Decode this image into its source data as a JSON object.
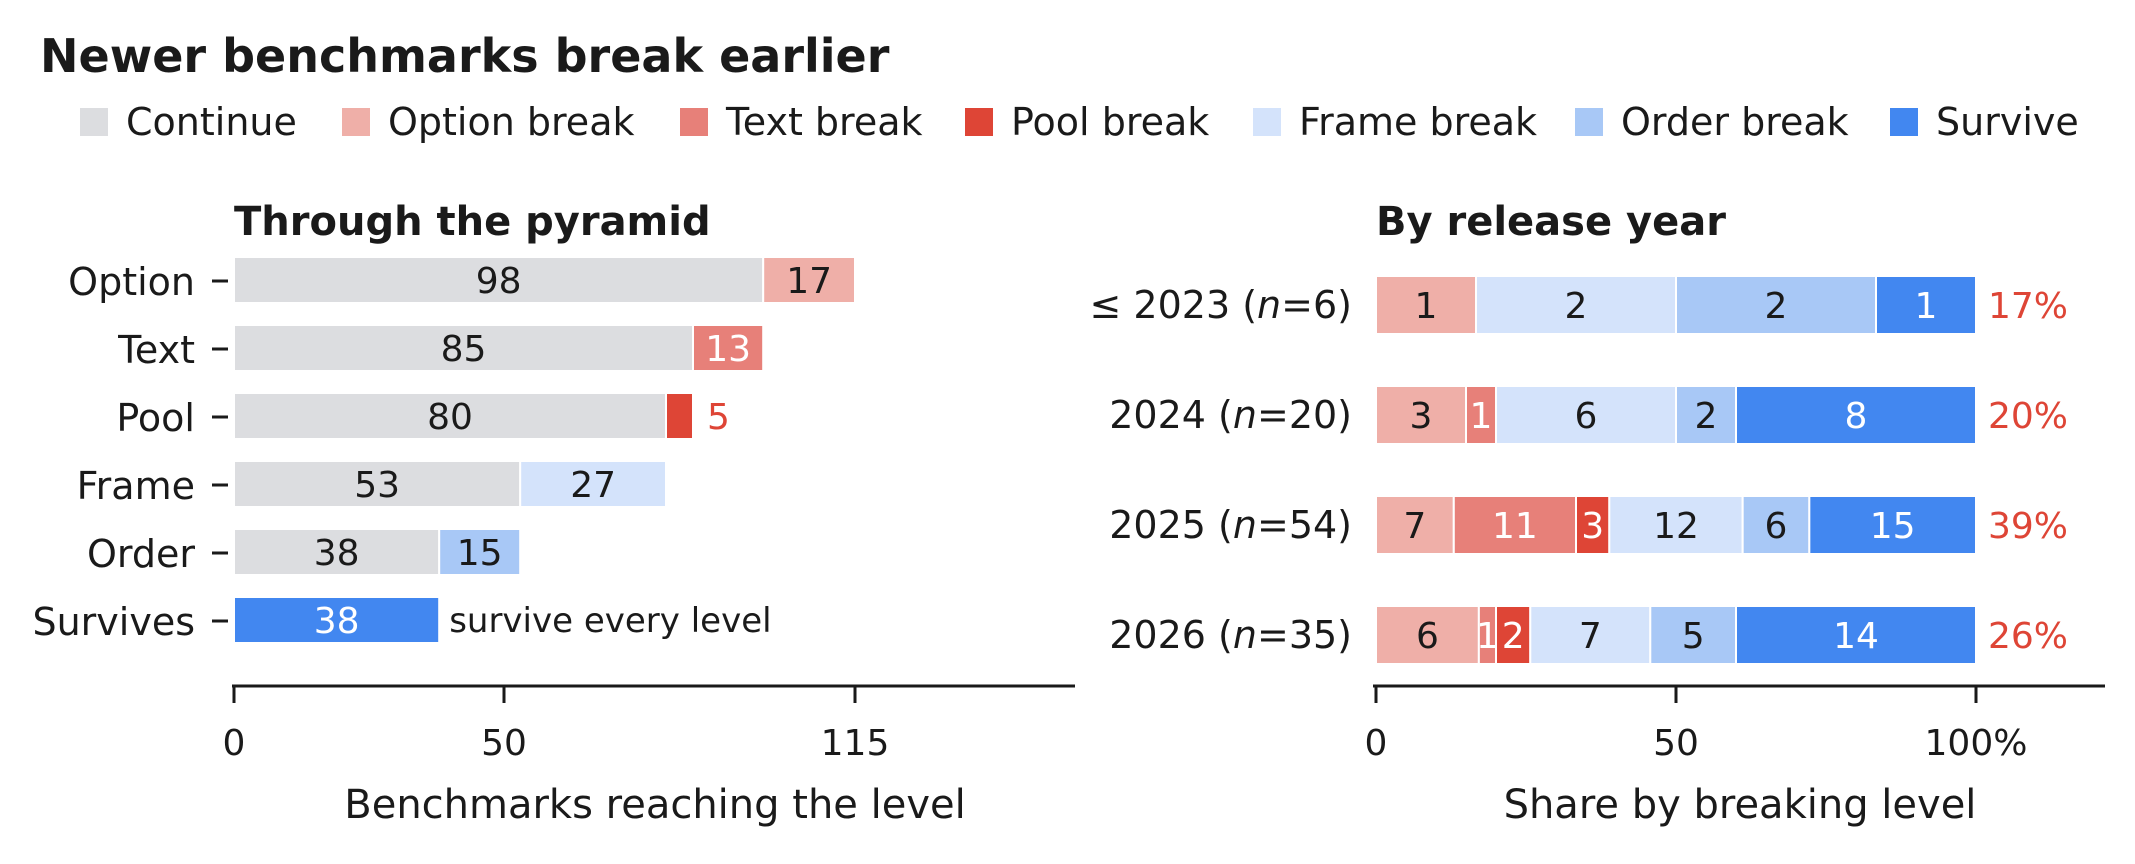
{
  "title": "Newer benchmarks break earlier",
  "legend": [
    {
      "label": "Continue",
      "color": "#dcdde0"
    },
    {
      "label": "Option break",
      "color": "#efafa8"
    },
    {
      "label": "Text break",
      "color": "#e78079"
    },
    {
      "label": "Pool break",
      "color": "#de4536"
    },
    {
      "label": "Frame break",
      "color": "#d4e3fb"
    },
    {
      "label": "Order break",
      "color": "#a8c8f6"
    },
    {
      "label": "Survive",
      "color": "#4287f0"
    }
  ],
  "chart_data": [
    {
      "type": "bar",
      "orientation": "horizontal",
      "stacked": true,
      "title": "Through the pyramid",
      "xlabel": "Benchmarks reaching the level",
      "xticks": [
        "0",
        "50",
        "115"
      ],
      "xtick_values": [
        0,
        50,
        115
      ],
      "xlim": [
        0,
        156
      ],
      "categories": [
        "Option",
        "Text",
        "Pool",
        "Frame",
        "Order",
        "Survives"
      ],
      "rows": [
        {
          "category": "Option",
          "segments": [
            {
              "name": "Continue",
              "value": 98,
              "label": "98"
            },
            {
              "name": "Option break",
              "value": 17,
              "label": "17"
            }
          ]
        },
        {
          "category": "Text",
          "segments": [
            {
              "name": "Continue",
              "value": 85,
              "label": "85"
            },
            {
              "name": "Text break",
              "value": 13,
              "label": "13"
            }
          ]
        },
        {
          "category": "Pool",
          "segments": [
            {
              "name": "Continue",
              "value": 80,
              "label": "80"
            },
            {
              "name": "Pool break",
              "value": 5,
              "label": "5",
              "label_outside": true
            }
          ]
        },
        {
          "category": "Frame",
          "segments": [
            {
              "name": "Continue",
              "value": 53,
              "label": "53"
            },
            {
              "name": "Frame break",
              "value": 27,
              "label": "27"
            }
          ]
        },
        {
          "category": "Order",
          "segments": [
            {
              "name": "Continue",
              "value": 38,
              "label": "38"
            },
            {
              "name": "Order break",
              "value": 15,
              "label": "15"
            }
          ]
        },
        {
          "category": "Survives",
          "segments": [
            {
              "name": "Survive",
              "value": 38,
              "label": "38"
            }
          ],
          "annotation": "survive every level"
        }
      ]
    },
    {
      "type": "bar",
      "orientation": "horizontal",
      "stacked": true,
      "normalized": true,
      "title": "By release year",
      "xlabel": "Share by breaking level",
      "xticks": [
        "0",
        "50",
        "100%"
      ],
      "xtick_values": [
        0,
        50,
        100
      ],
      "xlim": [
        0,
        122
      ],
      "rows": [
        {
          "year": "≤ 2023",
          "n": "6",
          "segments": [
            {
              "name": "Option break",
              "value": 1
            },
            {
              "name": "Frame break",
              "value": 2
            },
            {
              "name": "Order break",
              "value": 2
            },
            {
              "name": "Survive",
              "value": 1
            }
          ],
          "share": "17%"
        },
        {
          "year": "2024",
          "n": "20",
          "segments": [
            {
              "name": "Option break",
              "value": 3
            },
            {
              "name": "Text break",
              "value": 1
            },
            {
              "name": "Frame break",
              "value": 6
            },
            {
              "name": "Order break",
              "value": 2
            },
            {
              "name": "Survive",
              "value": 8
            }
          ],
          "share": "20%"
        },
        {
          "year": "2025",
          "n": "54",
          "segments": [
            {
              "name": "Option break",
              "value": 7
            },
            {
              "name": "Text break",
              "value": 11
            },
            {
              "name": "Pool break",
              "value": 3
            },
            {
              "name": "Frame break",
              "value": 12
            },
            {
              "name": "Order break",
              "value": 6
            },
            {
              "name": "Survive",
              "value": 15
            }
          ],
          "share": "39%"
        },
        {
          "year": "2026",
          "n": "35",
          "segments": [
            {
              "name": "Option break",
              "value": 6
            },
            {
              "name": "Text break",
              "value": 1
            },
            {
              "name": "Pool break",
              "value": 2
            },
            {
              "name": "Frame break",
              "value": 7
            },
            {
              "name": "Order break",
              "value": 5
            },
            {
              "name": "Survive",
              "value": 14
            }
          ],
          "share": "26%"
        }
      ]
    }
  ]
}
